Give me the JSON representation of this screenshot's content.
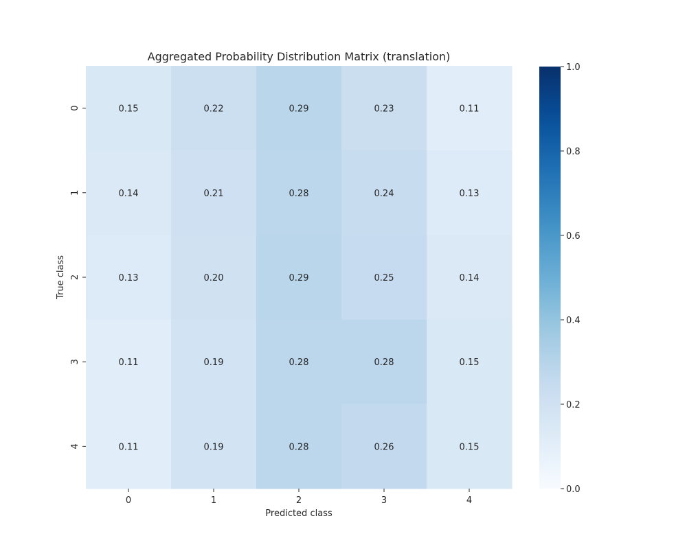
{
  "chart_data": {
    "type": "heatmap",
    "title": "Aggregated Probability Distribution Matrix (translation)",
    "xlabel": "Predicted class",
    "ylabel": "True class",
    "x_categories": [
      "0",
      "1",
      "2",
      "3",
      "4"
    ],
    "y_categories": [
      "0",
      "1",
      "2",
      "3",
      "4"
    ],
    "values": [
      [
        0.15,
        0.22,
        0.29,
        0.23,
        0.11
      ],
      [
        0.14,
        0.21,
        0.28,
        0.24,
        0.13
      ],
      [
        0.13,
        0.2,
        0.29,
        0.25,
        0.14
      ],
      [
        0.11,
        0.19,
        0.28,
        0.28,
        0.15
      ],
      [
        0.11,
        0.19,
        0.28,
        0.26,
        0.15
      ]
    ],
    "value_format": "0.00",
    "colormap": "Blues",
    "color_range": [
      0.0,
      1.0
    ],
    "colorbar_ticks": [
      "0.0",
      "0.2",
      "0.4",
      "0.6",
      "0.8",
      "1.0"
    ],
    "annotation_color": "#262626"
  }
}
